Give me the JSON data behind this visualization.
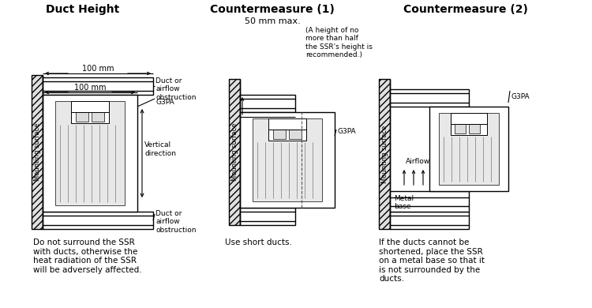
{
  "background_color": "#ffffff",
  "panel1_title": "Duct Height",
  "panel2_title": "Countermeasure (1)",
  "panel3_title": "Countermeasure (2)",
  "panel2_subtitle": "50 mm max.",
  "panel2_note": "(A height of no\nmore than half\nthe SSR's height is\nrecommended.)",
  "bottom_text1": "Do not surround the SSR\nwith ducts, otherwise the\nheat radiation of the SSR\nwill be adversely affected.",
  "bottom_text2": "Use short ducts.",
  "bottom_text3": "If the ducts cannot be\nshortened, place the SSR\non a metal base so that it\nis not surrounded by the\nducts.",
  "label_mounting": "Mounting surface",
  "label_g3pa": "G3PA",
  "label_vertical": "Vertical\ndirection",
  "label_duct_obs": "Duct or\nairflow\nobstruction",
  "label_100mm_top": "100 mm",
  "label_100mm_mid": "100 mm",
  "label_airflow": "Airflow",
  "label_metal_base": "Metal\nbase",
  "line_color": "#000000",
  "text_color": "#000000"
}
